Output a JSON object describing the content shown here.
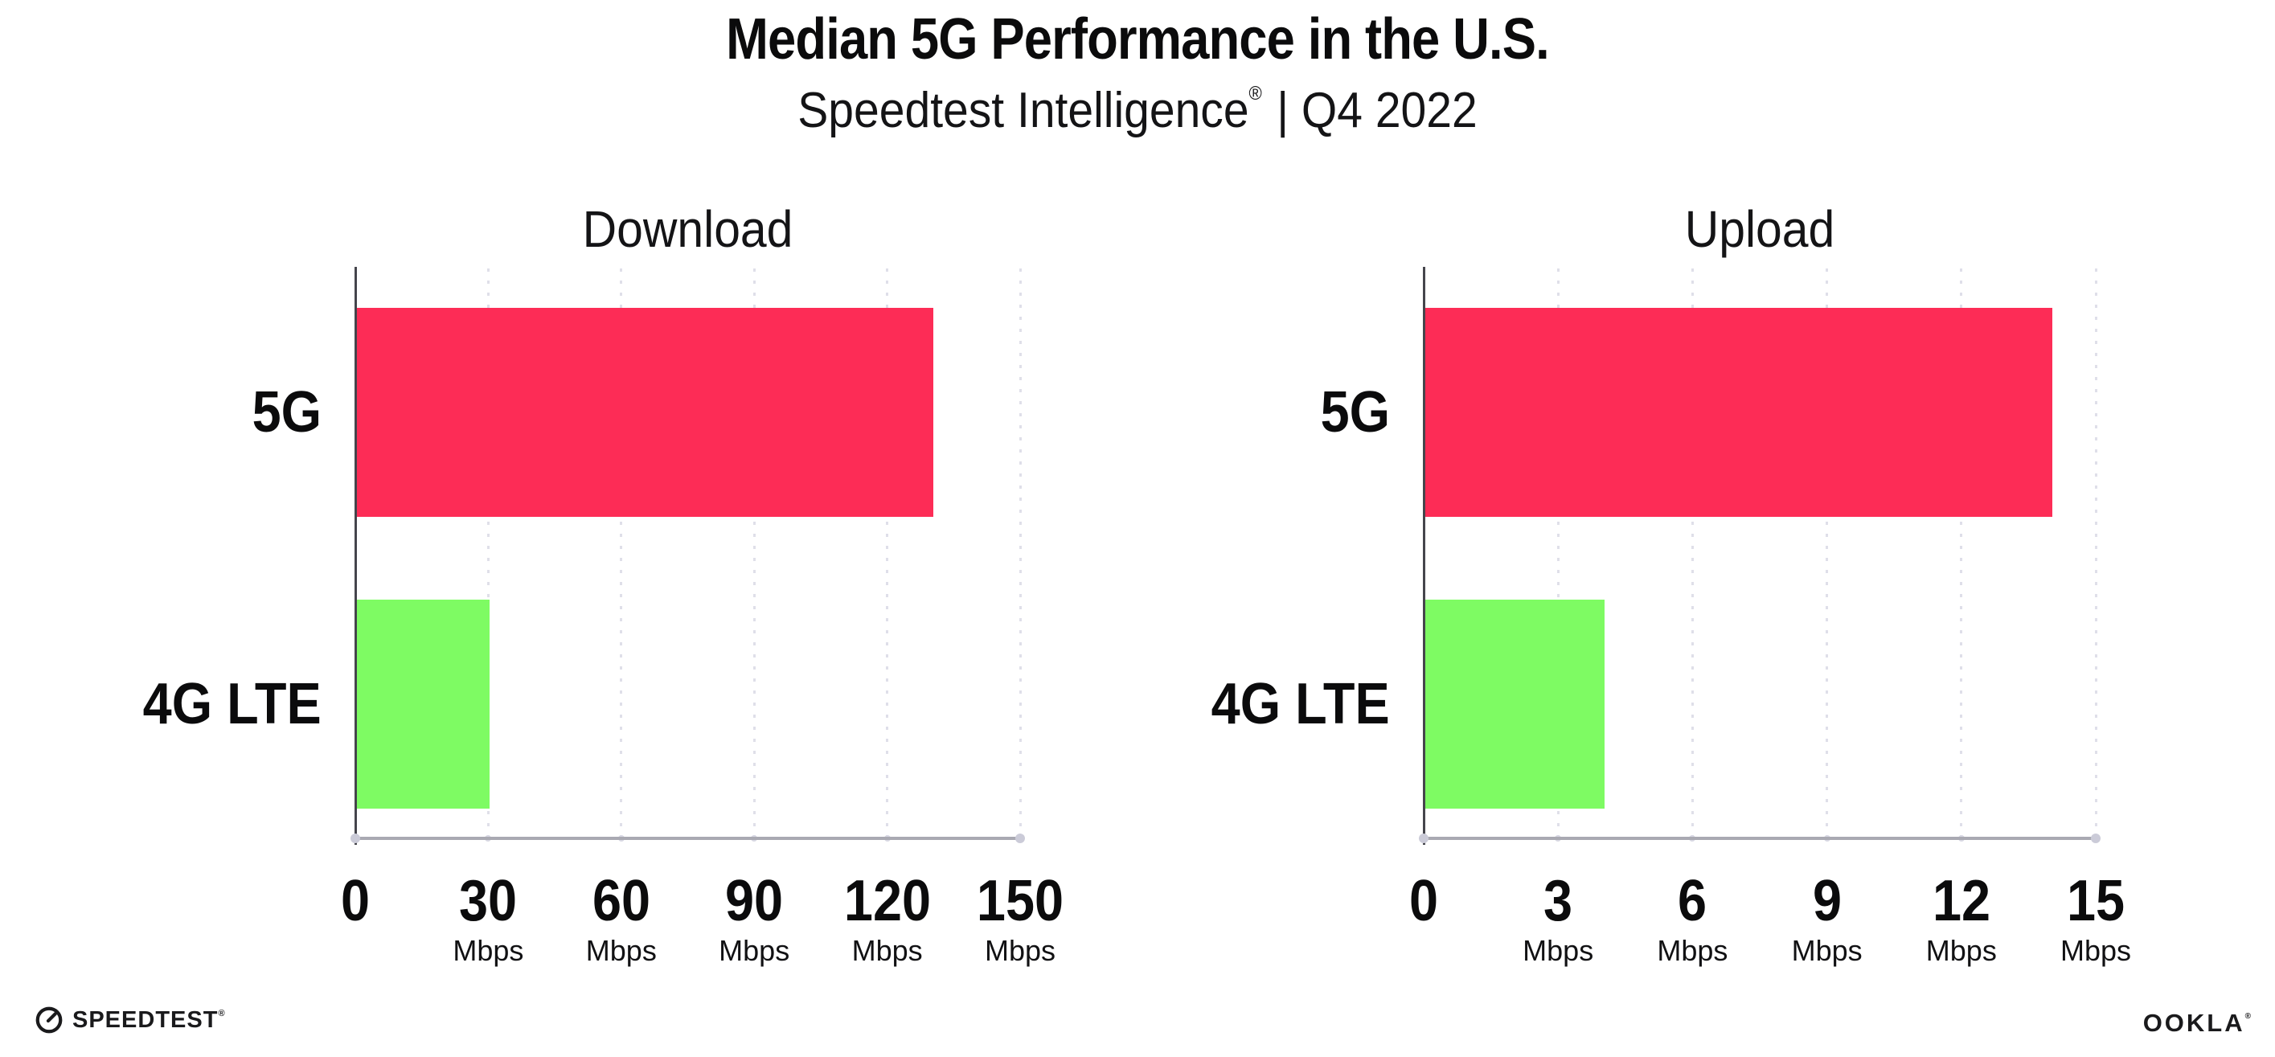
{
  "header": {
    "title": "Median 5G Performance in the U.S.",
    "subtitle_brand": "Speedtest Intelligence",
    "subtitle_reg": "®",
    "subtitle_rest": "| Q4 2022"
  },
  "footer": {
    "speedtest_label": "SPEEDTEST",
    "speedtest_mark": "®",
    "ookla_label": "OOKLA",
    "ookla_mark": "®"
  },
  "colors": {
    "bar_5g": "#FD2C56",
    "bar_4g_lte": "#7EFB63",
    "gridline": "#DFDFE9",
    "x_axis": "#A9A9B2",
    "axis_end_dot": "#CBCBD8",
    "gridline_foot_dot": "#D8D8E3",
    "y_axis": "#45454C",
    "text": "#0B0B0C"
  },
  "chart_data": [
    {
      "type": "bar",
      "orientation": "horizontal",
      "title": "Download",
      "categories": [
        "5G",
        "4G LTE"
      ],
      "values": [
        130,
        30
      ],
      "unit": "Mbps",
      "xlabel": "",
      "ylabel": "",
      "xlim": [
        0,
        150
      ],
      "xticks": [
        0,
        30,
        60,
        90,
        120,
        150
      ],
      "grid": "dotted-vertical",
      "legend": "none",
      "bar_colors": [
        "#FD2C56",
        "#7EFB63"
      ]
    },
    {
      "type": "bar",
      "orientation": "horizontal",
      "title": "Upload",
      "categories": [
        "5G",
        "4G LTE"
      ],
      "values": [
        14,
        4
      ],
      "unit": "Mbps",
      "xlabel": "",
      "ylabel": "",
      "xlim": [
        0,
        15
      ],
      "xticks": [
        0,
        3,
        6,
        9,
        12,
        15
      ],
      "grid": "dotted-vertical",
      "legend": "none",
      "bar_colors": [
        "#FD2C56",
        "#7EFB63"
      ]
    }
  ]
}
